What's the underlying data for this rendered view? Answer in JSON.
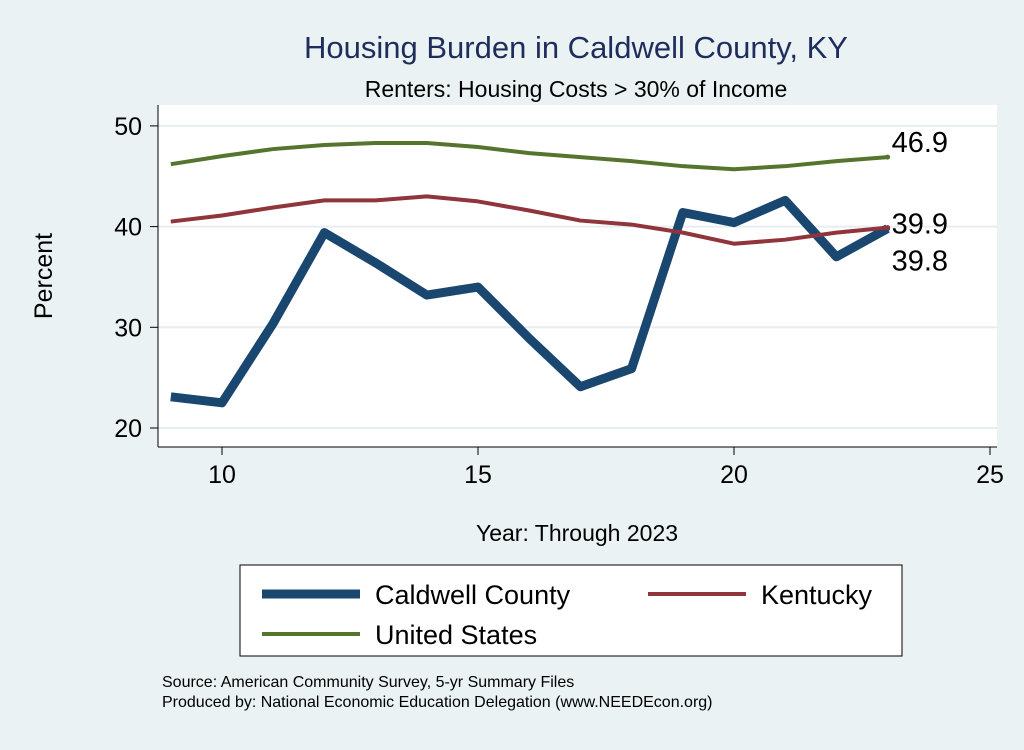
{
  "chart_data": {
    "type": "line",
    "title": "Housing Burden in Caldwell County, KY",
    "subtitle": "Renters: Housing Costs > 30% of Income",
    "xlabel": "Year: Through 2023",
    "ylabel": "Percent",
    "xlim": [
      9,
      25.3
    ],
    "ylim": [
      19,
      52
    ],
    "xticks": [
      10,
      15,
      20,
      25
    ],
    "yticks": [
      20,
      30,
      40,
      50
    ],
    "grid": true,
    "legend_position": "bottom",
    "x": [
      9,
      10,
      11,
      12,
      13,
      14,
      15,
      16,
      17,
      18,
      19,
      20,
      21,
      22,
      23
    ],
    "series": [
      {
        "name": "Caldwell County",
        "color": "#1a476f",
        "width": 9,
        "values": [
          23.1,
          22.5,
          30.4,
          39.4,
          36.4,
          33.2,
          34.0,
          28.9,
          24.1,
          25.9,
          41.4,
          40.4,
          42.6,
          37.0,
          39.8
        ],
        "end_label": "39.8"
      },
      {
        "name": "Kentucky",
        "color": "#90353b",
        "width": 4,
        "values": [
          40.5,
          41.1,
          41.9,
          42.6,
          42.6,
          43.0,
          42.5,
          41.6,
          40.6,
          40.2,
          39.4,
          38.3,
          38.7,
          39.4,
          39.9
        ],
        "end_label": "39.9"
      },
      {
        "name": "United States",
        "color": "#55752f",
        "width": 4,
        "values": [
          46.2,
          47.0,
          47.7,
          48.1,
          48.3,
          48.3,
          47.9,
          47.3,
          46.9,
          46.5,
          46.0,
          45.7,
          46.0,
          46.5,
          46.9
        ],
        "end_label": "46.9"
      }
    ]
  },
  "notes": {
    "source": "Source: American Community Survey, 5-yr Summary Files",
    "produced": "Produced by: National Economic Education Delegation (www.NEEDEcon.org)"
  }
}
